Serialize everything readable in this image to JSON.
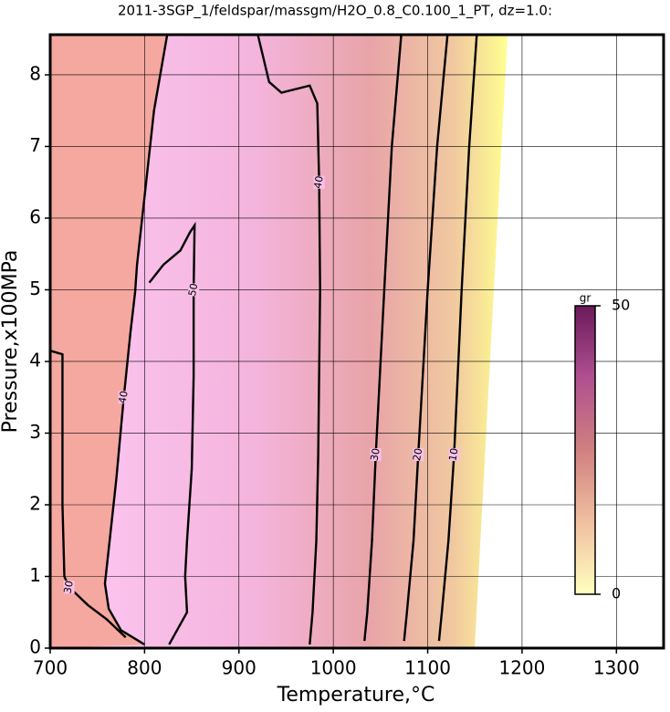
{
  "chart_data": {
    "type": "contour",
    "title": "2011-3SGP_1/feldspar/massgm/H2O_0.8_C0.100_1_PT, dz=1.0:",
    "x_label": "Temperature,°C",
    "y_label": "Pressure,x100MPa",
    "xlim": [
      700,
      1350
    ],
    "ylim": [
      0,
      8.56
    ],
    "xticks": [
      700,
      800,
      900,
      1000,
      1100,
      1200,
      1300
    ],
    "yticks": [
      0,
      1,
      2,
      3,
      4,
      5,
      6,
      7,
      8
    ],
    "grid": true,
    "colorbar": {
      "label": "gr",
      "lim": [
        0,
        50
      ],
      "ticks": [
        0,
        50
      ],
      "colors": [
        "#ffffc0",
        "#f0c0a0",
        "#d08080",
        "#b05090",
        "#6a1a5a"
      ]
    },
    "contours": [
      {
        "level": 10,
        "x": [
          1112,
          1115,
          1122,
          1128,
          1136,
          1144,
          1152
        ],
        "y": [
          0.1,
          0.5,
          1.5,
          2.7,
          5,
          7,
          8.56
        ]
      },
      {
        "level": 20,
        "x": [
          1075,
          1078,
          1085,
          1090,
          1100,
          1110,
          1121
        ],
        "y": [
          0.1,
          0.5,
          1.5,
          2.7,
          5,
          7,
          8.56
        ]
      },
      {
        "level": 30,
        "x": [
          1033,
          1036,
          1041,
          1045,
          1054,
          1062,
          1072
        ],
        "y": [
          0.1,
          0.5,
          1.5,
          2.7,
          5,
          7,
          8.56
        ]
      },
      {
        "level": 40,
        "x": [
          975,
          978,
          982,
          984,
          986,
          985,
          983,
          975,
          945,
          932,
          920
        ],
        "y": [
          0.05,
          0.5,
          1.5,
          2.7,
          5,
          6.5,
          7.6,
          7.85,
          7.75,
          7.9,
          8.56
        ]
      },
      {
        "level": 50,
        "x": [
          826,
          845,
          843,
          845,
          850,
          852,
          852,
          853,
          848,
          838,
          820,
          805
        ],
        "y": [
          0.05,
          0.5,
          1,
          1.5,
          2.5,
          3.8,
          5,
          5.9,
          5.8,
          5.55,
          5.35,
          5.1
        ]
      },
      {
        "level": 40,
        "x": [
          824,
          810,
          800,
          792,
          790,
          785,
          778,
          770,
          763,
          758,
          762,
          775,
          800
        ],
        "y": [
          8.56,
          7.5,
          6.3,
          5.35,
          4.97,
          4.4,
          3.5,
          2.35,
          1.5,
          0.9,
          0.55,
          0.25,
          0.05
        ]
      },
      {
        "level": 30,
        "x": [
          700,
          713,
          713,
          715,
          720,
          740,
          760,
          780
        ],
        "y": [
          4.15,
          4.1,
          2,
          1,
          0.85,
          0.6,
          0.4,
          0.15
        ]
      }
    ],
    "line_color": "#000000"
  }
}
